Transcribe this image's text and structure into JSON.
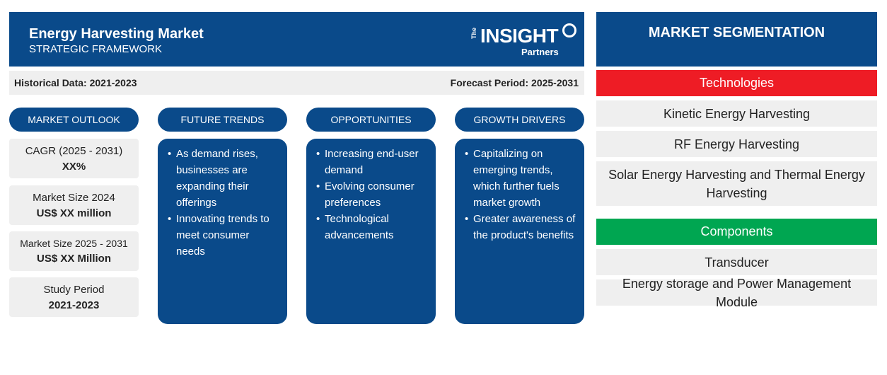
{
  "header": {
    "title": "Energy Harvesting Market",
    "subtitle": "STRATEGIC FRAMEWORK",
    "logo": {
      "the": "The",
      "main": "INSIGHT",
      "sub": "Partners"
    }
  },
  "periods": {
    "historical": "Historical Data: 2021-2023",
    "forecast": "Forecast Period: 2025-2031"
  },
  "columns": [
    {
      "title": "MARKET OUTLOOK"
    },
    {
      "title": "FUTURE TRENDS",
      "items": [
        "As demand rises, businesses are expanding their offerings",
        "Innovating trends to meet consumer needs"
      ]
    },
    {
      "title": "OPPORTUNITIES",
      "items": [
        "Increasing end-user demand",
        "Evolving consumer preferences",
        "Technological advancements"
      ]
    },
    {
      "title": "GROWTH DRIVERS",
      "items": [
        "Capitalizing on emerging trends, which further fuels market growth",
        "Greater awareness of the product's benefits"
      ]
    }
  ],
  "outlook": [
    {
      "label": "CAGR (2025 - 2031)",
      "value": "XX%"
    },
    {
      "label": "Market Size 2024",
      "value": "US$ XX million"
    },
    {
      "label": "Market Size 2025 - 2031",
      "value": "US$ XX Million"
    },
    {
      "label": "Study Period",
      "value": "2021-2023"
    }
  ],
  "segmentation": {
    "title": "MARKET SEGMENTATION",
    "groups": [
      {
        "name": "Technologies",
        "color": "#ee1c25",
        "items": [
          "Kinetic Energy Harvesting",
          "RF Energy Harvesting",
          "Solar Energy Harvesting and Thermal Energy Harvesting"
        ]
      },
      {
        "name": "Components",
        "color": "#00a651",
        "items": [
          "Transducer",
          "Energy storage and Power Management Module"
        ]
      }
    ]
  },
  "colors": {
    "primary": "#0a4a8a",
    "panel": "#efefef"
  }
}
